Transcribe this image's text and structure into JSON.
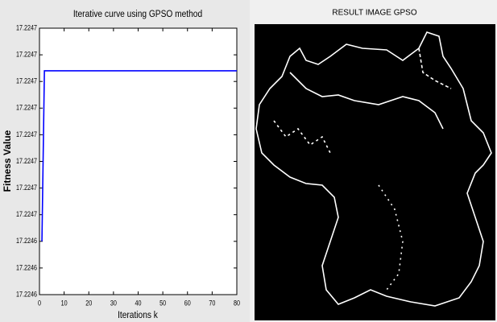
{
  "chart_data": {
    "type": "line",
    "title": "Iterative curve using GPSO method",
    "xlabel": "Iterations k",
    "ylabel": "Fitness Value",
    "xlim": [
      0,
      80
    ],
    "xticks": [
      0,
      10,
      20,
      30,
      40,
      50,
      60,
      70,
      80
    ],
    "ylim": [
      17.22462,
      17.22472
    ],
    "yticks": [
      {
        "value": 17.22462,
        "label": "17.2246"
      },
      {
        "value": 17.22463,
        "label": "17.2246"
      },
      {
        "value": 17.22464,
        "label": "17.2246"
      },
      {
        "value": 17.22465,
        "label": "17.2247"
      },
      {
        "value": 17.22466,
        "label": "17.2247"
      },
      {
        "value": 17.22467,
        "label": "17.2247"
      },
      {
        "value": 17.22468,
        "label": "17.2247"
      },
      {
        "value": 17.22469,
        "label": "17.2247"
      },
      {
        "value": 17.2247,
        "label": "17.2247"
      },
      {
        "value": 17.22471,
        "label": "17.2247"
      },
      {
        "value": 17.22472,
        "label": "17.2247"
      }
    ],
    "series": [
      {
        "color": "#0000ff",
        "x": [
          1,
          2,
          80
        ],
        "values": [
          17.22464,
          17.224704,
          17.224704
        ]
      }
    ]
  },
  "image": {
    "title": "RESULT IMAGE GPSO"
  }
}
